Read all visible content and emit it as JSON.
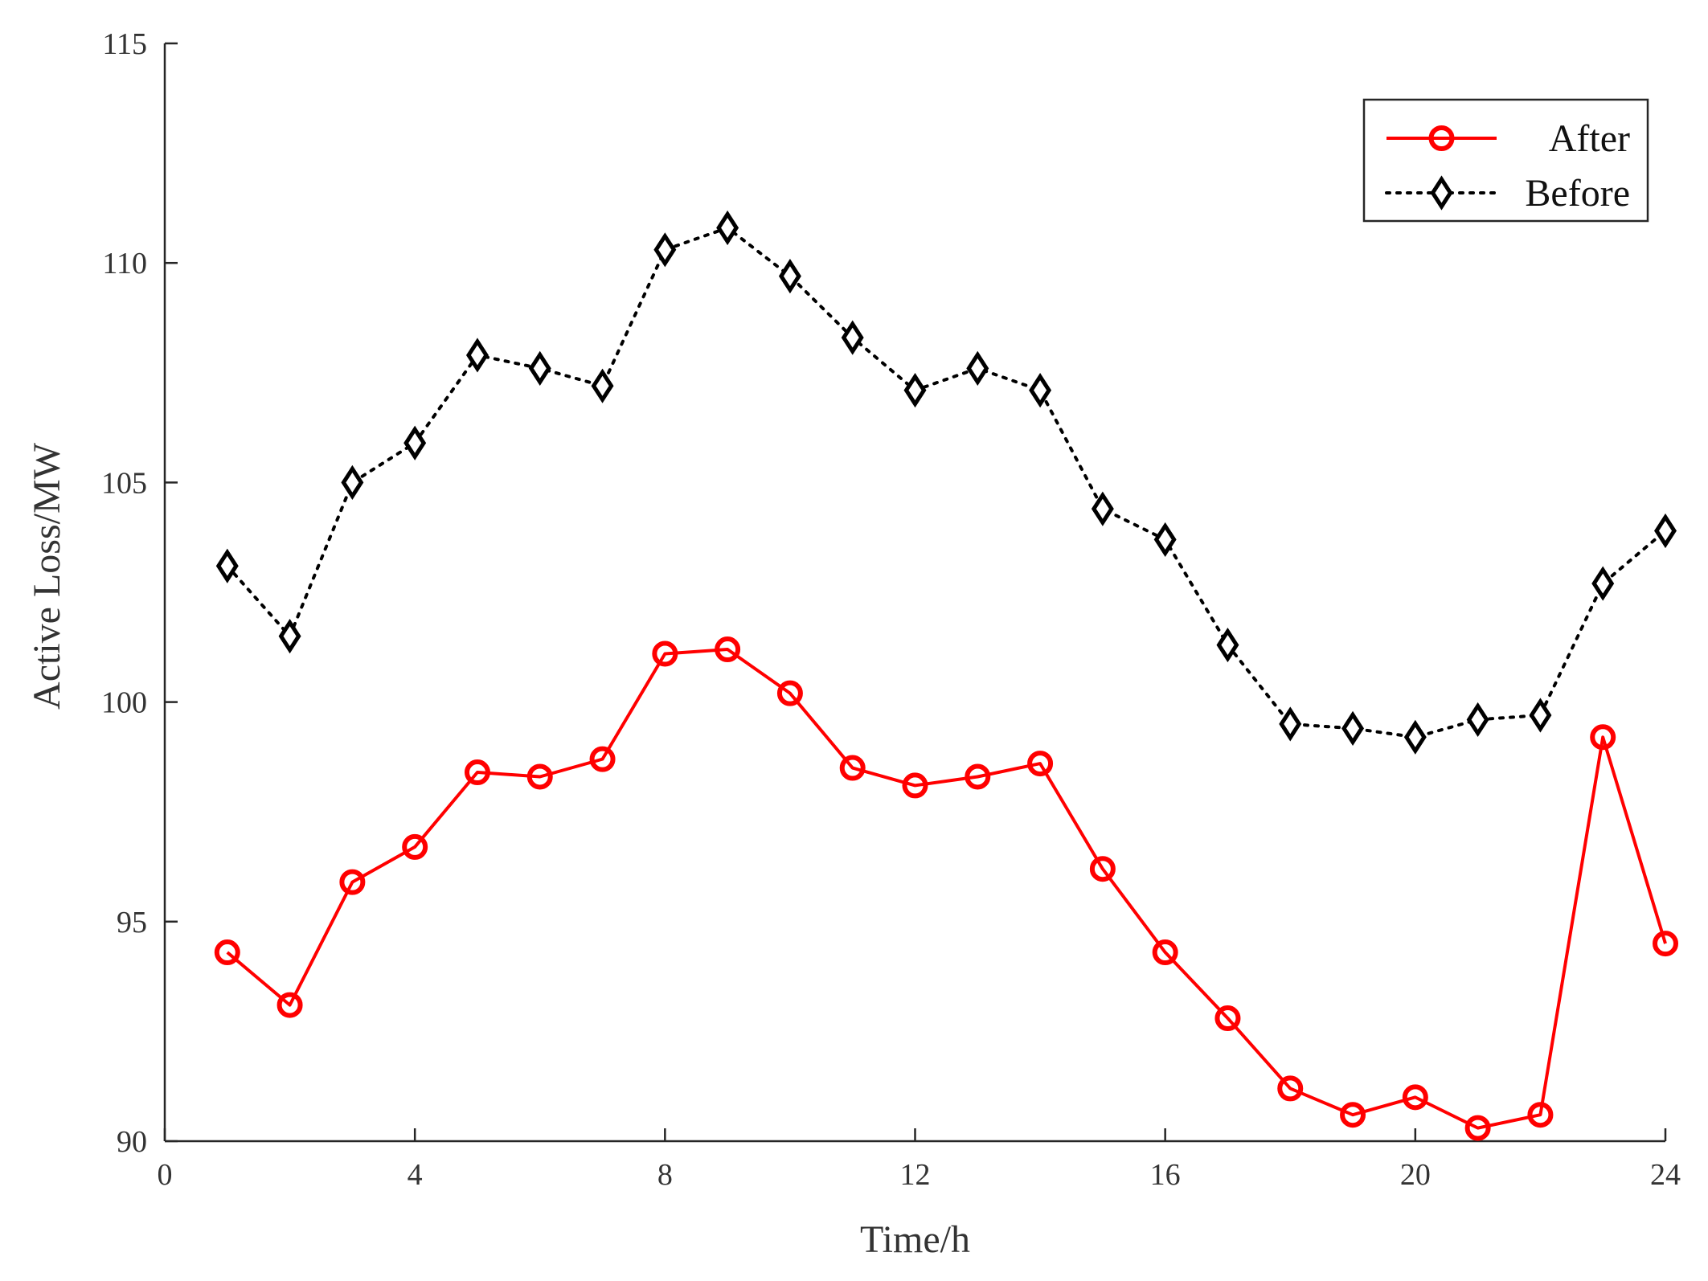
{
  "chart_data": {
    "type": "line",
    "title": "",
    "xlabel": "Time/h",
    "ylabel": "Active Loss/MW",
    "xlim": [
      0,
      24
    ],
    "ylim": [
      90,
      115
    ],
    "xticks": [
      0,
      4,
      8,
      12,
      16,
      20,
      24
    ],
    "yticks": [
      90,
      95,
      100,
      105,
      110,
      115
    ],
    "x": [
      1,
      2,
      3,
      4,
      5,
      6,
      7,
      8,
      9,
      10,
      11,
      12,
      13,
      14,
      15,
      16,
      17,
      18,
      19,
      20,
      21,
      22,
      23,
      24
    ],
    "grid": false,
    "legend_position": "top-right",
    "series": [
      {
        "name": "After",
        "color": "#ff0000",
        "line_style": "solid",
        "marker": "circle",
        "values": [
          94.3,
          93.1,
          95.9,
          96.7,
          98.4,
          98.3,
          98.7,
          101.1,
          101.2,
          100.2,
          98.5,
          98.1,
          98.3,
          98.6,
          96.2,
          94.3,
          92.8,
          91.2,
          90.6,
          91.0,
          90.3,
          90.6,
          99.2,
          94.5
        ]
      },
      {
        "name": "Before",
        "color": "#000000",
        "line_style": "dotted",
        "marker": "diamond",
        "values": [
          103.1,
          101.5,
          105.0,
          105.9,
          107.9,
          107.6,
          107.2,
          110.3,
          110.8,
          109.7,
          108.3,
          107.1,
          107.6,
          107.1,
          104.4,
          103.7,
          101.3,
          99.5,
          99.4,
          99.2,
          99.6,
          99.7,
          102.7,
          103.9
        ]
      }
    ]
  }
}
